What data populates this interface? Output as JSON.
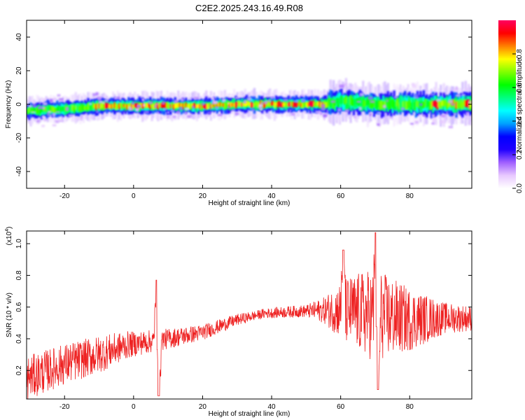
{
  "title": "C2E2.2025.243.16.49.R08",
  "chart_data": [
    {
      "type": "heatmap",
      "name": "spectrogram",
      "xlabel": "Height of straight line (km)",
      "ylabel": "Frequency (Hz)",
      "xlim": [
        -31,
        98
      ],
      "ylim": [
        -50,
        50
      ],
      "xticks": [
        -20,
        0,
        20,
        40,
        60,
        80
      ],
      "xtick_labels": [
        "-20",
        "0",
        "20",
        "40",
        "60",
        "80"
      ],
      "yticks": [
        -40,
        -20,
        0,
        20,
        40
      ],
      "ytick_labels": [
        "-40",
        "-20",
        "0",
        "20",
        "40"
      ],
      "colorbar": {
        "label": "Normalized spectral amplitude",
        "range": [
          0,
          1
        ],
        "ticks": [
          0.0,
          0.2,
          0.4,
          0.6,
          0.8
        ],
        "tick_labels": [
          "0.0",
          "0.2",
          "0.4",
          "0.6",
          "0.8"
        ],
        "colors": [
          "#ffffff",
          "#e8c8ff",
          "#a060ff",
          "#2000ff",
          "#0000ff",
          "#00a0ff",
          "#00ffff",
          "#00ff80",
          "#00ff00",
          "#80ff00",
          "#ffff00",
          "#ff8000",
          "#ff0000",
          "#ff0060"
        ]
      },
      "ridge": {
        "heights_km": [
          -31,
          -25,
          -20,
          -15,
          -10,
          -5,
          0,
          10,
          20,
          30,
          40,
          50,
          55,
          58,
          60,
          65,
          70,
          80,
          90,
          98
        ],
        "frequency_hz": [
          -4,
          -3,
          -3,
          -2,
          -1,
          -1,
          -1,
          -1,
          -1,
          0,
          0,
          0,
          0,
          1,
          2,
          1,
          0,
          0,
          0,
          0
        ]
      }
    },
    {
      "type": "line",
      "name": "snr",
      "xlabel": "Height of straight line (km)",
      "ylabel": "SNR (10 * v/v)",
      "yscale_label": "(x10",
      "yscale_exp": "4",
      "yscale_close": ")",
      "xlim": [
        -31,
        98
      ],
      "ylim": [
        0.02,
        1.08
      ],
      "xticks": [
        -20,
        0,
        20,
        40,
        60,
        80
      ],
      "xtick_labels": [
        "-20",
        "0",
        "20",
        "40",
        "60",
        "80"
      ],
      "yticks": [
        0.2,
        0.4,
        0.6,
        0.8,
        1.0
      ],
      "ytick_labels": [
        "0.2",
        "0.4",
        "0.6",
        "0.8",
        "1.0"
      ],
      "line_color": "#ee2222",
      "trend": {
        "x": [
          -31,
          -20,
          -10,
          -2,
          10,
          20,
          30,
          38,
          45,
          55,
          60,
          70,
          80,
          90,
          98
        ],
        "y": [
          0.15,
          0.24,
          0.3,
          0.36,
          0.4,
          0.44,
          0.52,
          0.56,
          0.57,
          0.58,
          0.58,
          0.55,
          0.52,
          0.53,
          0.53
        ]
      },
      "noise_amplitude": {
        "x": [
          -31,
          -10,
          0,
          20,
          35,
          50,
          55,
          62,
          70,
          80,
          90,
          98
        ],
        "y": [
          0.14,
          0.12,
          0.08,
          0.05,
          0.03,
          0.04,
          0.08,
          0.22,
          0.3,
          0.2,
          0.1,
          0.08
        ]
      },
      "peaks": [
        {
          "x": 6.7,
          "y": 0.77
        },
        {
          "x": 7.3,
          "y": 0.04
        },
        {
          "x": 60.8,
          "y": 0.96
        },
        {
          "x": 70.2,
          "y": 1.07
        },
        {
          "x": 70.8,
          "y": 0.08
        }
      ]
    }
  ]
}
